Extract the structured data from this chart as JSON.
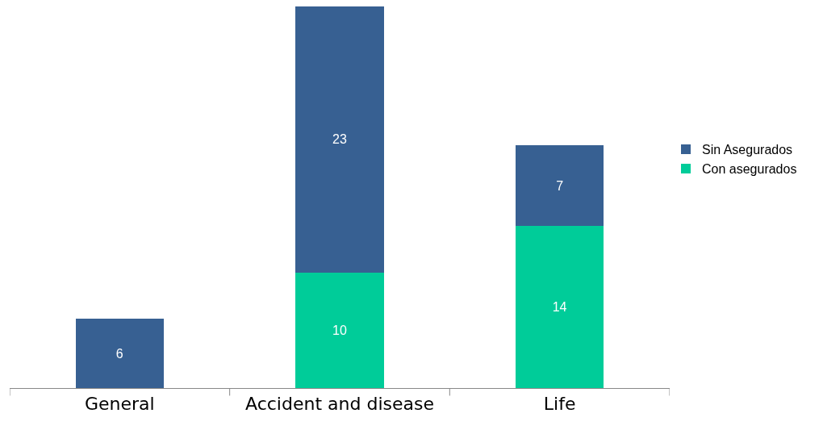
{
  "chart_data": {
    "type": "bar",
    "stacked": true,
    "categories": [
      "General",
      "Accident and disease",
      "Life"
    ],
    "series": [
      {
        "name": "Con asegurados",
        "color": "#00cc99",
        "values": [
          null,
          10,
          14
        ]
      },
      {
        "name": "Sin Asegurados",
        "color": "#376092",
        "values": [
          6,
          23,
          7
        ]
      }
    ],
    "data_labels": true,
    "legend": "right"
  }
}
